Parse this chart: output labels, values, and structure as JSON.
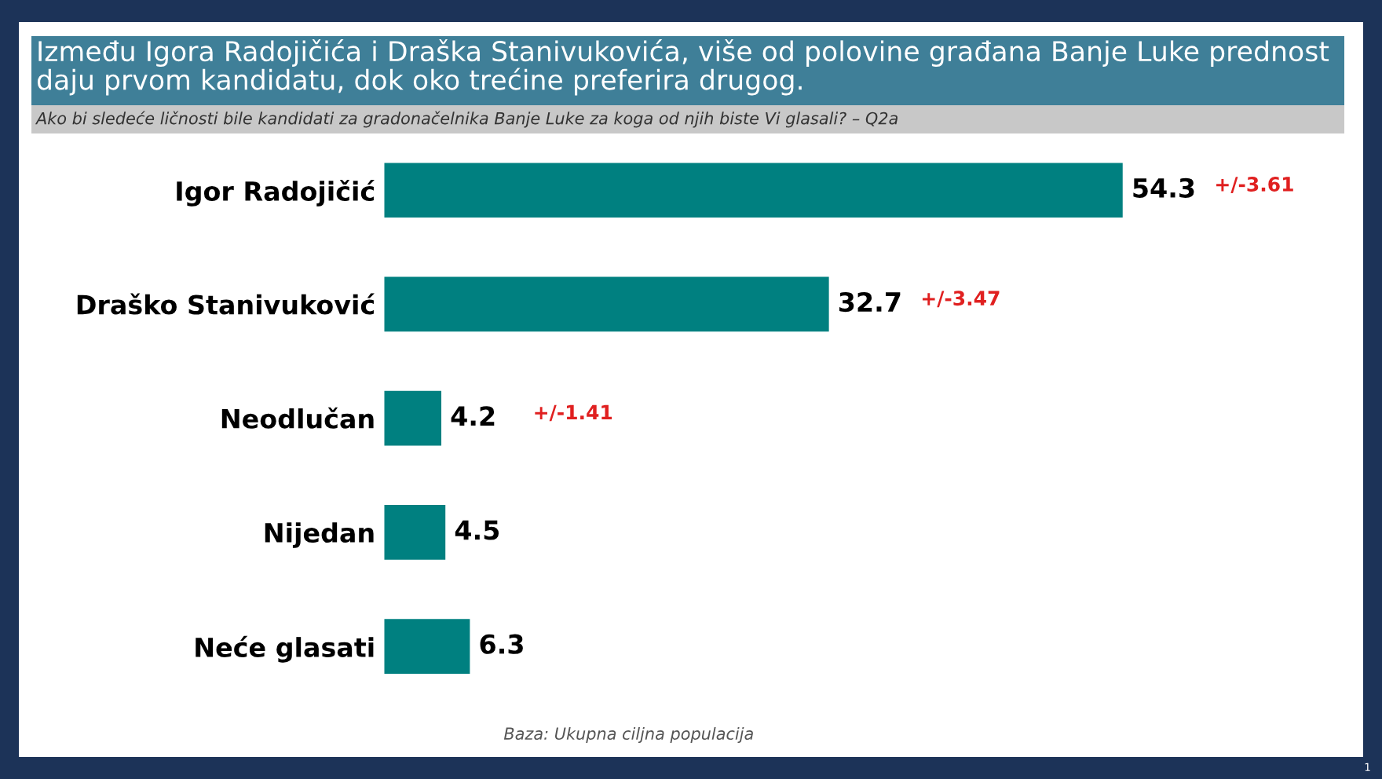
{
  "chart_data": {
    "type": "bar",
    "orientation": "horizontal",
    "title": "Između Igora Radojičića i Draška Stanivukovića, više od polovine građana Banje Luke prednost daju prvom kandidatu, dok oko trećine preferira drugog.",
    "subtitle": "Ako bi sledeće ličnosti bile kandidati za gradonačelnika Banje Luke za koga od njih biste Vi glasali? – Q2a",
    "categories": [
      "Igor Radojičić",
      "Draško Stanivuković",
      "Neodlučan",
      "Nijedan",
      "Neće glasati"
    ],
    "values": [
      54.3,
      32.7,
      4.2,
      4.5,
      6.3
    ],
    "color": "#008080",
    "data_labels": true,
    "grid": false,
    "legend": false,
    "annotations": [
      "+/-3.61",
      "+/-3.47",
      "+/-1.41",
      "Baza: Ukupna ciljna populacija",
      "1"
    ]
  }
}
